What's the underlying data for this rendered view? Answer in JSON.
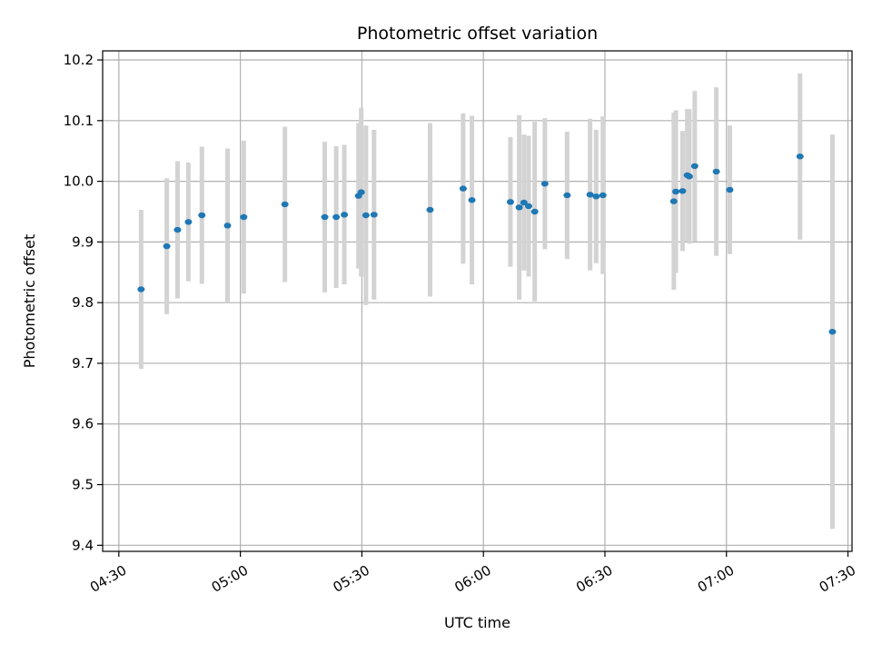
{
  "chart_data": {
    "type": "scatter",
    "title": "Photometric offset variation",
    "xlabel": "UTC time",
    "ylabel": "Photometric offset",
    "xlim": [
      "04:26",
      "07:31"
    ],
    "ylim": [
      9.39,
      10.215
    ],
    "x_ticks": [
      "04:30",
      "05:00",
      "05:30",
      "06:00",
      "06:30",
      "07:00",
      "07:30"
    ],
    "y_ticks": [
      9.4,
      9.5,
      9.6,
      9.7,
      9.8,
      9.9,
      10.0,
      10.1,
      10.2
    ],
    "y_tick_labels": [
      "9.4",
      "9.5",
      "9.6",
      "9.7",
      "9.8",
      "9.9",
      "10.0",
      "10.1",
      "10.2"
    ],
    "grid": true,
    "colors": {
      "point": "#1f77b4",
      "errorbar": "#d3d3d3",
      "grid": "#b0b0b0"
    },
    "points": [
      {
        "time": "04:35:30",
        "y": 9.822,
        "yerr": 0.131
      },
      {
        "time": "04:41:50",
        "y": 9.893,
        "yerr": 0.112
      },
      {
        "time": "04:44:30",
        "y": 9.92,
        "yerr": 0.113
      },
      {
        "time": "04:47:10",
        "y": 9.933,
        "yerr": 0.098
      },
      {
        "time": "04:50:30",
        "y": 9.944,
        "yerr": 0.113
      },
      {
        "time": "04:56:50",
        "y": 9.927,
        "yerr": 0.127
      },
      {
        "time": "05:00:50",
        "y": 9.941,
        "yerr": 0.126
      },
      {
        "time": "05:11:00",
        "y": 9.962,
        "yerr": 0.128
      },
      {
        "time": "05:20:50",
        "y": 9.941,
        "yerr": 0.124
      },
      {
        "time": "05:23:40",
        "y": 9.941,
        "yerr": 0.117
      },
      {
        "time": "05:25:40",
        "y": 9.945,
        "yerr": 0.115
      },
      {
        "time": "05:29:10",
        "y": 9.976,
        "yerr": 0.12
      },
      {
        "time": "05:29:50",
        "y": 9.982,
        "yerr": 0.139
      },
      {
        "time": "05:31:00",
        "y": 9.944,
        "yerr": 0.148
      },
      {
        "time": "05:33:00",
        "y": 9.945,
        "yerr": 0.14
      },
      {
        "time": "05:46:50",
        "y": 9.953,
        "yerr": 0.143
      },
      {
        "time": "05:55:00",
        "y": 9.988,
        "yerr": 0.124
      },
      {
        "time": "05:57:10",
        "y": 9.969,
        "yerr": 0.139
      },
      {
        "time": "06:06:40",
        "y": 9.966,
        "yerr": 0.107
      },
      {
        "time": "06:08:50",
        "y": 9.957,
        "yerr": 0.152
      },
      {
        "time": "06:10:00",
        "y": 9.965,
        "yerr": 0.112
      },
      {
        "time": "06:11:10",
        "y": 9.959,
        "yerr": 0.116
      },
      {
        "time": "06:12:40",
        "y": 9.95,
        "yerr": 0.148
      },
      {
        "time": "06:15:10",
        "y": 9.996,
        "yerr": 0.108
      },
      {
        "time": "06:20:40",
        "y": 9.977,
        "yerr": 0.105
      },
      {
        "time": "06:26:20",
        "y": 9.978,
        "yerr": 0.125
      },
      {
        "time": "06:27:50",
        "y": 9.975,
        "yerr": 0.11
      },
      {
        "time": "06:29:30",
        "y": 9.977,
        "yerr": 0.13
      },
      {
        "time": "06:47:00",
        "y": 9.967,
        "yerr": 0.146
      },
      {
        "time": "06:47:30",
        "y": 9.983,
        "yerr": 0.134
      },
      {
        "time": "06:49:10",
        "y": 9.984,
        "yerr": 0.099
      },
      {
        "time": "06:50:20",
        "y": 10.01,
        "yerr": 0.109
      },
      {
        "time": "06:50:50",
        "y": 10.008,
        "yerr": 0.111
      },
      {
        "time": "06:52:10",
        "y": 10.025,
        "yerr": 0.124
      },
      {
        "time": "06:57:30",
        "y": 10.016,
        "yerr": 0.139
      },
      {
        "time": "07:00:50",
        "y": 9.986,
        "yerr": 0.106
      },
      {
        "time": "07:18:10",
        "y": 10.041,
        "yerr": 0.137
      },
      {
        "time": "07:26:10",
        "y": 9.752,
        "yerr": 0.325
      }
    ]
  }
}
